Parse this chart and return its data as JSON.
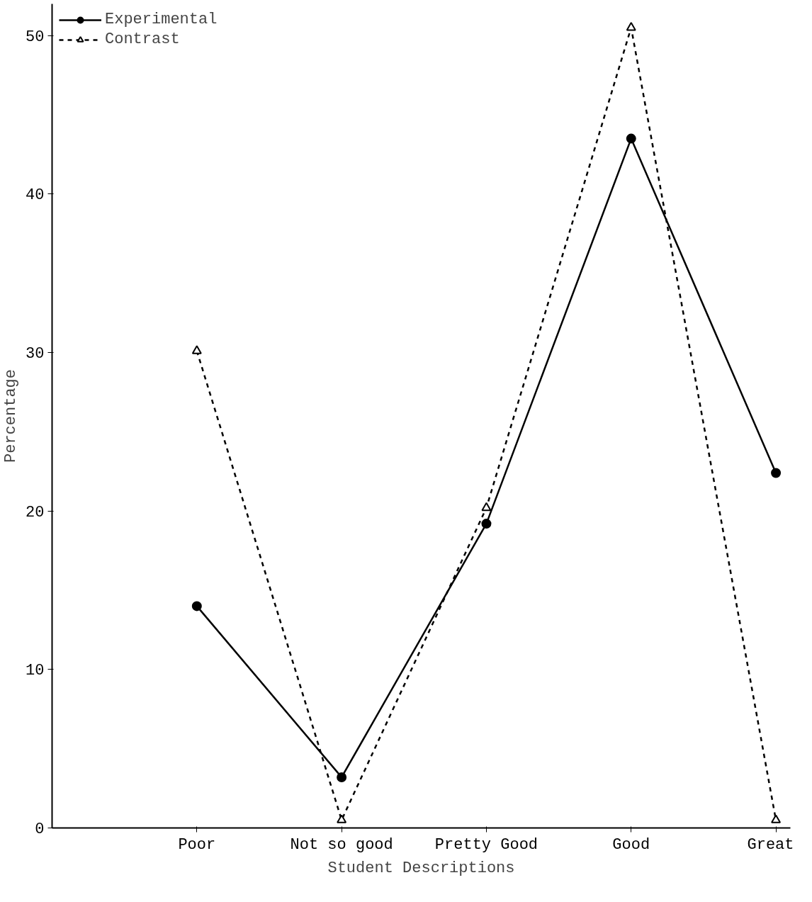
{
  "chart_data": {
    "type": "line",
    "xlabel": "Student Descriptions",
    "ylabel": "Percentage",
    "categories": [
      "Poor",
      "Not so good",
      "Pretty Good",
      "Good",
      "Great"
    ],
    "series": [
      {
        "name": "Experimental",
        "color": "#000000",
        "values": [
          14.0,
          3.2,
          19.2,
          43.5,
          22.4
        ],
        "marker": "circle",
        "line_style": "solid"
      },
      {
        "name": "Contrast",
        "color": "#000000",
        "values": [
          30.1,
          0.5,
          20.2,
          50.5,
          0.5
        ],
        "marker": "triangle",
        "line_style": "dashed"
      }
    ],
    "ylim": [
      0,
      52
    ],
    "yticks": [
      0,
      10,
      20,
      30,
      40,
      50
    ],
    "grid": false,
    "legend": "top left"
  }
}
